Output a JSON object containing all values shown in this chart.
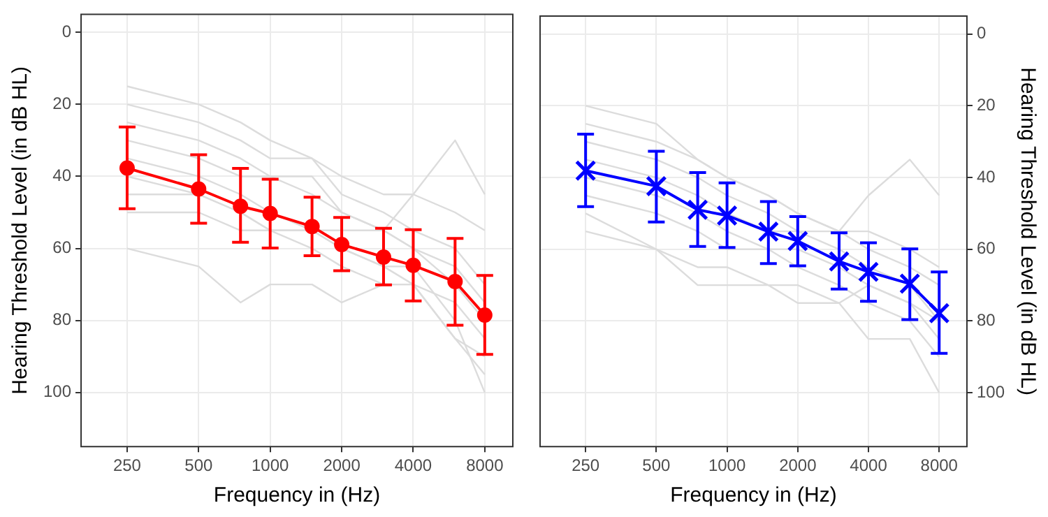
{
  "chart_data": [
    {
      "type": "line",
      "xlabel": "Frequency in (Hz)",
      "ylabel": "Hearing Threshold Level (in dB HL)",
      "log": "x",
      "grid": true,
      "x": [
        250,
        500,
        750,
        1000,
        1500,
        2000,
        3000,
        4000,
        6000,
        8000
      ],
      "xlim": [
        160,
        10500
      ],
      "xticks": [
        250,
        500,
        1000,
        2000,
        4000,
        8000
      ],
      "ylim": [
        115,
        -5
      ],
      "yticks": [
        0,
        20,
        40,
        60,
        80,
        100
      ],
      "series": [
        {
          "color": "#dcdcdc",
          "marker": "none",
          "values": [
            15,
            20,
            25,
            30,
            35,
            40,
            45,
            45,
            50,
            55
          ]
        },
        {
          "color": "#dcdcdc",
          "marker": "none",
          "values": [
            20,
            25,
            30,
            35,
            35,
            45,
            50,
            55,
            60,
            70
          ]
        },
        {
          "color": "#dcdcdc",
          "marker": "none",
          "values": [
            25,
            30,
            35,
            40,
            40,
            50,
            55,
            60,
            65,
            75
          ]
        },
        {
          "color": "#dcdcdc",
          "marker": "none",
          "values": [
            30,
            35,
            40,
            40,
            45,
            50,
            55,
            60,
            70,
            80
          ]
        },
        {
          "color": "#dcdcdc",
          "marker": "none",
          "values": [
            35,
            40,
            45,
            50,
            55,
            60,
            65,
            70,
            75,
            85
          ]
        },
        {
          "color": "#dcdcdc",
          "marker": "none",
          "values": [
            40,
            45,
            50,
            55,
            55,
            55,
            55,
            45,
            30,
            45
          ]
        },
        {
          "color": "#dcdcdc",
          "marker": "none",
          "values": [
            60,
            65,
            75,
            70,
            70,
            75,
            70,
            70,
            85,
            95
          ]
        },
        {
          "color": "#dcdcdc",
          "marker": "none",
          "values": [
            45,
            45,
            50,
            55,
            55,
            60,
            65,
            65,
            80,
            100
          ]
        },
        {
          "color": "#dcdcdc",
          "marker": "none",
          "values": [
            50,
            50,
            55,
            55,
            60,
            65,
            70,
            70,
            85,
            90
          ]
        },
        {
          "color": "#ff0000",
          "marker": "circle",
          "values": [
            37.7,
            43.5,
            48.3,
            50.3,
            53.9,
            58.9,
            62.4,
            64.7,
            69.2,
            78.5
          ],
          "errors": [
            [
              26.3,
              49.0
            ],
            [
              34.0,
              53.0
            ],
            [
              37.8,
              58.3
            ],
            [
              40.8,
              59.9
            ],
            [
              45.8,
              62.0
            ],
            [
              51.4,
              66.2
            ],
            [
              54.4,
              70.1
            ],
            [
              54.8,
              74.6
            ],
            [
              57.2,
              81.3
            ],
            [
              67.5,
              89.4
            ]
          ]
        }
      ]
    },
    {
      "type": "line",
      "xlabel": "Frequency in (Hz)",
      "y2label": "Hearing Threshold Level (in dB HL)",
      "log": "x",
      "grid": true,
      "x": [
        250,
        500,
        750,
        1000,
        1500,
        2000,
        3000,
        4000,
        6000,
        8000
      ],
      "xlim": [
        160,
        10500
      ],
      "xticks": [
        250,
        500,
        1000,
        2000,
        4000,
        8000
      ],
      "y2lim": [
        115,
        -5
      ],
      "y2ticks": [
        0,
        20,
        40,
        60,
        80,
        100
      ],
      "series": [
        {
          "axis": "y2",
          "color": "#dcdcdc",
          "marker": "none",
          "values": [
            20,
            25,
            35,
            40,
            45,
            50,
            55,
            55,
            60,
            65
          ]
        },
        {
          "axis": "y2",
          "color": "#dcdcdc",
          "marker": "none",
          "values": [
            25,
            30,
            35,
            40,
            45,
            50,
            55,
            60,
            65,
            70
          ]
        },
        {
          "axis": "y2",
          "color": "#dcdcdc",
          "marker": "none",
          "values": [
            30,
            35,
            40,
            45,
            50,
            55,
            60,
            65,
            70,
            80
          ]
        },
        {
          "axis": "y2",
          "color": "#dcdcdc",
          "marker": "none",
          "values": [
            35,
            40,
            45,
            50,
            55,
            55,
            55,
            45,
            35,
            45
          ]
        },
        {
          "axis": "y2",
          "color": "#dcdcdc",
          "marker": "none",
          "values": [
            40,
            45,
            50,
            55,
            60,
            60,
            65,
            70,
            75,
            80
          ]
        },
        {
          "axis": "y2",
          "color": "#dcdcdc",
          "marker": "none",
          "values": [
            45,
            50,
            55,
            60,
            60,
            65,
            70,
            75,
            80,
            90
          ]
        },
        {
          "axis": "y2",
          "color": "#dcdcdc",
          "marker": "none",
          "values": [
            50,
            60,
            70,
            70,
            70,
            75,
            75,
            70,
            75,
            85
          ]
        },
        {
          "axis": "y2",
          "color": "#dcdcdc",
          "marker": "none",
          "values": [
            55,
            60,
            65,
            65,
            70,
            70,
            75,
            85,
            85,
            100
          ]
        },
        {
          "axis": "y2",
          "color": "#0000ff",
          "marker": "cross",
          "values": [
            38.1,
            42.4,
            49.0,
            50.6,
            55.1,
            57.7,
            63.4,
            66.3,
            69.6,
            77.8
          ],
          "errors": [
            [
              27.9,
              48.1
            ],
            [
              32.7,
              52.4
            ],
            [
              38.6,
              59.2
            ],
            [
              41.5,
              59.5
            ],
            [
              46.7,
              64.0
            ],
            [
              50.9,
              64.6
            ],
            [
              55.4,
              71.1
            ],
            [
              58.2,
              74.5
            ],
            [
              59.9,
              79.6
            ],
            [
              66.3,
              89.0
            ]
          ]
        }
      ]
    }
  ]
}
